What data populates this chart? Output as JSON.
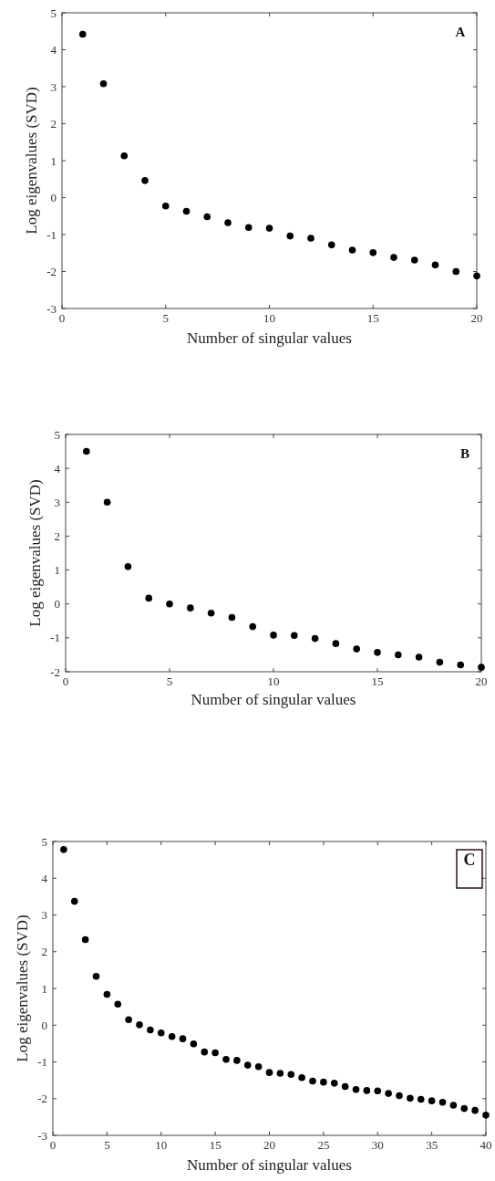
{
  "chart_data": [
    {
      "type": "scatter",
      "xlabel": "Number of singular values",
      "ylabel": "Log eigenvalues (SVD)",
      "annotations": [
        "A"
      ],
      "marker": "circle",
      "x": [
        1,
        2,
        3,
        4,
        5,
        6,
        7,
        8,
        9,
        10,
        11,
        12,
        13,
        14,
        15,
        16,
        17,
        18,
        19,
        20
      ],
      "series": [
        {
          "color": "#000000",
          "values": [
            4.42,
            3.08,
            1.13,
            0.46,
            -0.23,
            -0.37,
            -0.52,
            -0.68,
            -0.81,
            -0.83,
            -1.04,
            -1.1,
            -1.28,
            -1.42,
            -1.49,
            -1.62,
            -1.69,
            -1.82,
            -2.0,
            -2.12
          ]
        }
      ],
      "xlim": [
        0,
        20
      ],
      "xticks": [
        0,
        5,
        10,
        15,
        20
      ],
      "ylim": [
        -3,
        5
      ],
      "yticks": [
        -3,
        -2,
        -1,
        0,
        1,
        2,
        3,
        4,
        5
      ]
    },
    {
      "type": "scatter",
      "xlabel": "Number of singular values",
      "ylabel": "Log eigenvalues (SVD)",
      "annotations": [
        "B"
      ],
      "marker": "circle",
      "x": [
        1,
        2,
        3,
        4,
        5,
        6,
        7,
        8,
        9,
        10,
        11,
        12,
        13,
        14,
        15,
        16,
        17,
        18,
        19,
        20
      ],
      "series": [
        {
          "color": "#000000",
          "values": [
            4.5,
            3.0,
            1.1,
            0.17,
            0.0,
            -0.12,
            -0.27,
            -0.4,
            -0.67,
            -0.92,
            -0.93,
            -1.02,
            -1.17,
            -1.33,
            -1.43,
            -1.5,
            -1.57,
            -1.72,
            -1.8,
            -1.87
          ]
        }
      ],
      "xlim": [
        0,
        20
      ],
      "xticks": [
        0,
        5,
        10,
        15,
        20
      ],
      "ylim": [
        -2,
        5
      ],
      "yticks": [
        -2,
        -1,
        0,
        1,
        2,
        3,
        4,
        5
      ]
    },
    {
      "type": "scatter",
      "xlabel": "Number of singular values",
      "ylabel": "Log eigenvalues (SVD)",
      "annotations": [
        "C"
      ],
      "marker": "circle",
      "x": [
        1,
        2,
        3,
        4,
        5,
        6,
        7,
        8,
        9,
        10,
        11,
        12,
        13,
        14,
        15,
        16,
        17,
        18,
        19,
        20,
        21,
        22,
        23,
        24,
        25,
        26,
        27,
        28,
        29,
        30,
        31,
        32,
        33,
        34,
        35,
        36,
        37,
        38,
        39,
        40
      ],
      "series": [
        {
          "color": "#000000",
          "values": [
            4.78,
            3.37,
            2.33,
            1.33,
            0.84,
            0.57,
            0.15,
            0.01,
            -0.13,
            -0.21,
            -0.31,
            -0.37,
            -0.51,
            -0.73,
            -0.75,
            -0.93,
            -0.96,
            -1.09,
            -1.13,
            -1.29,
            -1.31,
            -1.34,
            -1.43,
            -1.52,
            -1.55,
            -1.58,
            -1.67,
            -1.75,
            -1.78,
            -1.79,
            -1.86,
            -1.92,
            -1.99,
            -2.02,
            -2.06,
            -2.1,
            -2.18,
            -2.27,
            -2.32,
            -2.45
          ]
        }
      ],
      "xlim": [
        0,
        40
      ],
      "xticks": [
        0,
        5,
        10,
        15,
        20,
        25,
        30,
        35,
        40
      ],
      "ylim": [
        -3,
        5
      ],
      "yticks": [
        -3,
        -2,
        -1,
        0,
        1,
        2,
        3,
        4,
        5
      ]
    }
  ]
}
